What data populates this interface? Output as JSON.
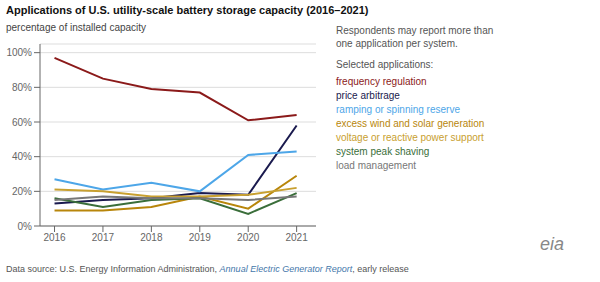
{
  "chart_data": {
    "type": "line",
    "title": "Applications of U.S. utility-scale battery storage capacity (2016–2021)",
    "subtitle": "percentage of installed capacity",
    "x": [
      2016,
      2017,
      2018,
      2019,
      2020,
      2021
    ],
    "series": [
      {
        "name": "frequency regulation",
        "color": "#8B1A1A",
        "values": [
          97,
          85,
          79,
          77,
          61,
          64
        ]
      },
      {
        "name": "price arbitrage",
        "color": "#1a1a4e",
        "values": [
          13,
          15,
          16,
          19,
          18,
          58
        ]
      },
      {
        "name": "ramping or spinning reserve",
        "color": "#4da6e8",
        "values": [
          27,
          21,
          25,
          20,
          41,
          43
        ]
      },
      {
        "name": "excess wind and solar generation",
        "color": "#b8860b",
        "values": [
          9,
          9,
          11,
          17,
          10,
          29
        ]
      },
      {
        "name": "voltage or reactive power support",
        "color": "#c8a030",
        "values": [
          21,
          20,
          17,
          17,
          18,
          22
        ]
      },
      {
        "name": "system peak shaving",
        "color": "#3a6e3a",
        "values": [
          16,
          11,
          15,
          16,
          7,
          19
        ]
      },
      {
        "name": "load management",
        "color": "#777777",
        "values": [
          15,
          17,
          16,
          16,
          15,
          17
        ]
      }
    ],
    "xlim": [
      2015.7,
      2021.4
    ],
    "xticks": [
      2016,
      2017,
      2018,
      2019,
      2020,
      2021
    ],
    "ylim": [
      0,
      105
    ],
    "yticks": [
      {
        "value": 0,
        "label": "0%"
      },
      {
        "value": 20,
        "label": "20%"
      },
      {
        "value": 40,
        "label": "40%"
      },
      {
        "value": 60,
        "label": "60%"
      },
      {
        "value": 80,
        "label": "80%"
      },
      {
        "value": 100,
        "label": "100%"
      }
    ],
    "grid": true,
    "annotations": {
      "note": [
        "Respondents may report more than",
        "one application per system."
      ],
      "selected": "Selected applications:",
      "source": [
        "Data source: U.S. Energy Information Administration, ",
        "Annual Electric Generator Report",
        ", early release"
      ],
      "logo": "eia"
    }
  }
}
